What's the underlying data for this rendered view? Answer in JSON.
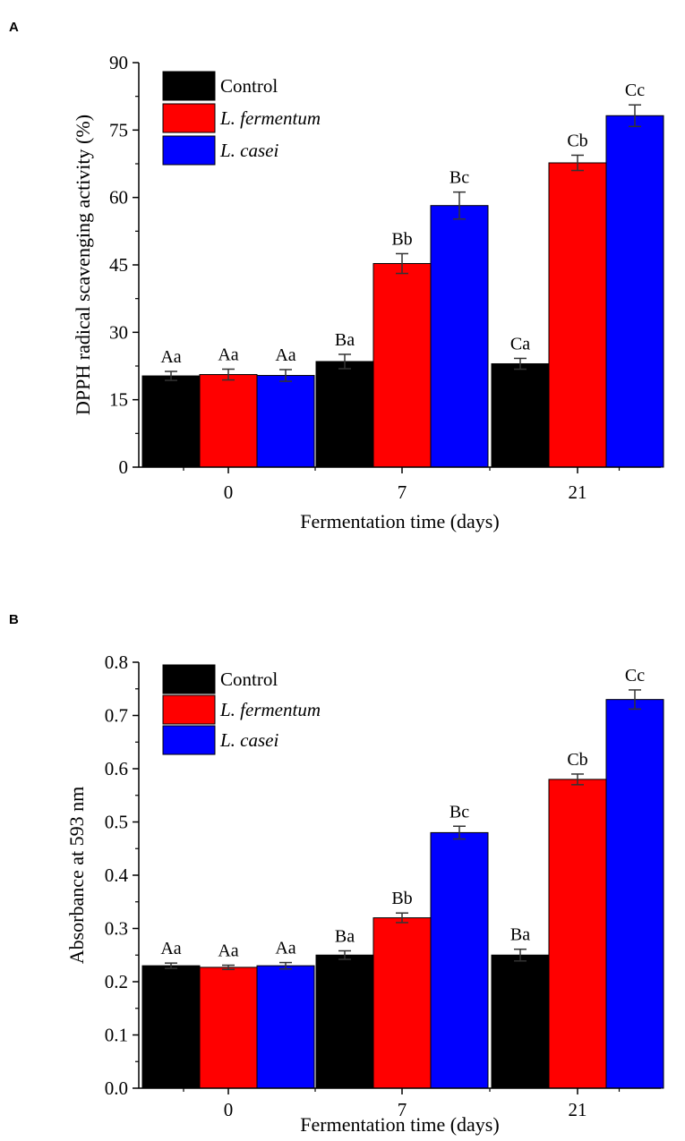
{
  "chart_data": [
    {
      "panel": "A",
      "type": "bar",
      "categories": [
        "0",
        "7",
        "21"
      ],
      "xlabel": "Fermentation time (days)",
      "ylabel": "DPPH radical scavenging activity (%)",
      "ylim": [
        0,
        90
      ],
      "yticks": [
        "0",
        "15",
        "30",
        "45",
        "60",
        "75",
        "90"
      ],
      "ytick_values": [
        0,
        15,
        30,
        45,
        60,
        75,
        90
      ],
      "legend_position": "top-left",
      "series": [
        {
          "name": "Control",
          "italic": false,
          "color": "#000000",
          "values": [
            20.3,
            23.5,
            23.0
          ],
          "errors": [
            1.0,
            1.6,
            1.2
          ],
          "labels": [
            "Aa",
            "Ba",
            "Ca"
          ]
        },
        {
          "name": "L. fermentum",
          "italic": true,
          "color": "#ff0000",
          "values": [
            20.6,
            45.3,
            67.7
          ],
          "errors": [
            1.2,
            2.2,
            1.7
          ],
          "labels": [
            "Aa",
            "Bb",
            "Cb"
          ]
        },
        {
          "name": "L. casei",
          "italic": true,
          "color": "#0000ff",
          "values": [
            20.4,
            58.2,
            78.2
          ],
          "errors": [
            1.3,
            3.0,
            2.4
          ],
          "labels": [
            "Aa",
            "Bc",
            "Cc"
          ]
        }
      ]
    },
    {
      "panel": "B",
      "type": "bar",
      "categories": [
        "0",
        "7",
        "21"
      ],
      "xlabel": "Fermentation time (days)",
      "ylabel": "Absorbance at 593 nm",
      "ylim": [
        0,
        0.8
      ],
      "yticks": [
        "0.0",
        "0.1",
        "0.2",
        "0.3",
        "0.4",
        "0.5",
        "0.6",
        "0.7",
        "0.8"
      ],
      "ytick_values": [
        0,
        0.1,
        0.2,
        0.3,
        0.4,
        0.5,
        0.6,
        0.7,
        0.8
      ],
      "legend_position": "top-left",
      "series": [
        {
          "name": "Control",
          "italic": false,
          "color": "#000000",
          "values": [
            0.23,
            0.25,
            0.25
          ],
          "errors": [
            0.005,
            0.008,
            0.011
          ],
          "labels": [
            "Aa",
            "Ba",
            "Ba"
          ]
        },
        {
          "name": " L. fermentum",
          "italic": true,
          "color": "#ff0000",
          "values": [
            0.227,
            0.32,
            0.58
          ],
          "errors": [
            0.004,
            0.009,
            0.01
          ],
          "labels": [
            "Aa",
            "Bb",
            "Cb"
          ]
        },
        {
          "name": "L. casei",
          "italic": true,
          "color": "#0000ff",
          "values": [
            0.23,
            0.48,
            0.73
          ],
          "errors": [
            0.006,
            0.012,
            0.018
          ],
          "labels": [
            "Aa",
            "Bc",
            "Cc"
          ]
        }
      ]
    }
  ],
  "panels": {
    "a_label": "A",
    "b_label": "B"
  }
}
